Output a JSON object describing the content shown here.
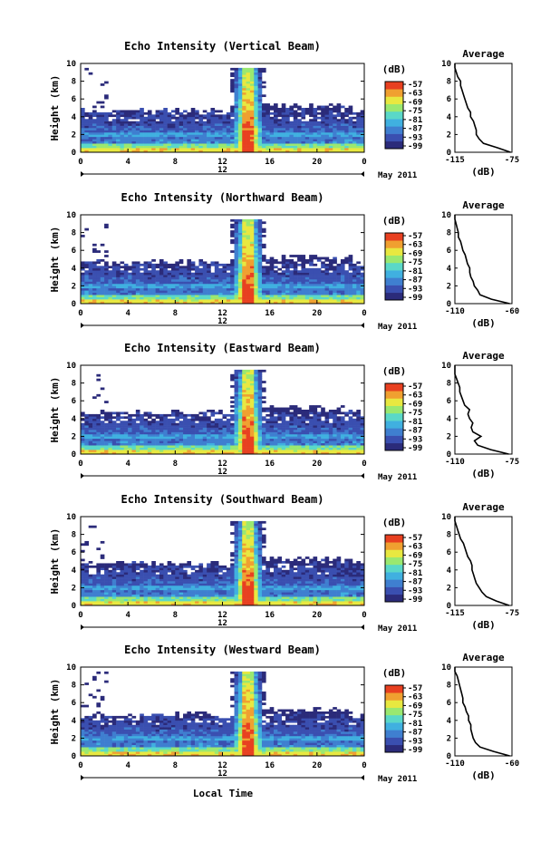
{
  "figure": {
    "colorbar_unit": "(dB)",
    "date_label": "May 2011",
    "xlabel": "Local Time",
    "colors": {
      "background": "#ffffff",
      "colormap": [
        "#2b2b7a",
        "#3a4fb0",
        "#3f7fd0",
        "#40b0e0",
        "#5ad8c8",
        "#9ae870",
        "#e8e840",
        "#f0a030",
        "#e84020"
      ]
    }
  },
  "chart_data": [
    {
      "type": "heatmap",
      "title": "Echo Intensity (Vertical Beam)",
      "ylabel": "Height (km)",
      "xlim": [
        0,
        24
      ],
      "ylim": [
        0,
        10
      ],
      "x_ticks": [
        "0",
        "4",
        "8",
        "12",
        "16",
        "20",
        "0"
      ],
      "y_ticks": [
        "0",
        "2",
        "4",
        "6",
        "8",
        "10"
      ],
      "noon_label": "12",
      "colorbar_ticks": [
        "-57",
        "-63",
        "-69",
        "-75",
        "-81",
        "-87",
        "-93",
        "-99"
      ],
      "profile": {
        "title": "Average",
        "xlabel": "(dB)",
        "xlim": [
          -115,
          -75
        ],
        "x_ticks": [
          "-115",
          "-75"
        ],
        "y": [
          0,
          0.5,
          1,
          1.5,
          2,
          2.5,
          3,
          3.5,
          4,
          4.5,
          5,
          5.5,
          6,
          6.5,
          7,
          7.5,
          8,
          8.5,
          9,
          9.5,
          10
        ],
        "x": [
          -76,
          -85,
          -95,
          -98,
          -100,
          -100,
          -101,
          -102,
          -104,
          -104,
          -106,
          -107,
          -108,
          -109,
          -110,
          -111,
          -111,
          -113,
          -114,
          -115,
          -115
        ]
      }
    },
    {
      "type": "heatmap",
      "title": "Echo Intensity (Northward Beam)",
      "ylabel": "Height (km)",
      "xlim": [
        0,
        24
      ],
      "ylim": [
        0,
        10
      ],
      "x_ticks": [
        "0",
        "4",
        "8",
        "12",
        "16",
        "20",
        "0"
      ],
      "y_ticks": [
        "0",
        "2",
        "4",
        "6",
        "8",
        "10"
      ],
      "noon_label": "12",
      "colorbar_ticks": [
        "-57",
        "-63",
        "-69",
        "-75",
        "-81",
        "-87",
        "-93",
        "-99"
      ],
      "profile": {
        "title": "Average",
        "xlabel": "(dB)",
        "xlim": [
          -110,
          -60
        ],
        "x_ticks": [
          "-110",
          "-60"
        ],
        "y": [
          0,
          0.5,
          1,
          1.5,
          2,
          2.5,
          3,
          3.5,
          4,
          4.5,
          5,
          5.5,
          6,
          6.5,
          7,
          7.5,
          8,
          8.5,
          9,
          9.5,
          10
        ],
        "x": [
          -62,
          -78,
          -88,
          -90,
          -93,
          -94,
          -96,
          -97,
          -97,
          -99,
          -100,
          -101,
          -103,
          -104,
          -105,
          -107,
          -107,
          -108,
          -109,
          -110,
          -110
        ]
      }
    },
    {
      "type": "heatmap",
      "title": "Echo Intensity (Eastward Beam)",
      "ylabel": "Height (km)",
      "xlim": [
        0,
        24
      ],
      "ylim": [
        0,
        10
      ],
      "x_ticks": [
        "0",
        "4",
        "8",
        "12",
        "16",
        "20",
        "0"
      ],
      "y_ticks": [
        "0",
        "2",
        "4",
        "6",
        "8",
        "10"
      ],
      "noon_label": "12",
      "colorbar_ticks": [
        "-57",
        "-63",
        "-69",
        "-75",
        "-81",
        "-87",
        "-93",
        "-99"
      ],
      "profile": {
        "title": "Average",
        "xlabel": "(dB)",
        "xlim": [
          -110,
          -75
        ],
        "x_ticks": [
          "-110",
          "-75"
        ],
        "y": [
          0,
          0.5,
          1,
          1.5,
          2,
          2.5,
          3,
          3.5,
          4,
          4.5,
          5,
          5.5,
          6,
          6.5,
          7,
          7.5,
          8,
          8.5,
          9,
          9.5,
          10
        ],
        "x": [
          -77,
          -88,
          -96,
          -98,
          -94,
          -99,
          -100,
          -99,
          -101,
          -102,
          -101,
          -104,
          -105,
          -106,
          -107,
          -107,
          -108,
          -109,
          -110,
          -110,
          -110
        ]
      }
    },
    {
      "type": "heatmap",
      "title": "Echo Intensity (Southward Beam)",
      "ylabel": "Height (km)",
      "xlim": [
        0,
        24
      ],
      "ylim": [
        0,
        10
      ],
      "x_ticks": [
        "0",
        "4",
        "8",
        "12",
        "16",
        "20",
        "0"
      ],
      "y_ticks": [
        "0",
        "2",
        "4",
        "6",
        "8",
        "10"
      ],
      "noon_label": "12",
      "colorbar_ticks": [
        "-57",
        "-63",
        "-69",
        "-75",
        "-81",
        "-87",
        "-93",
        "-99"
      ],
      "profile": {
        "title": "Average",
        "xlabel": "(dB)",
        "xlim": [
          -115,
          -75
        ],
        "x_ticks": [
          "-115",
          "-75"
        ],
        "y": [
          0,
          0.5,
          1,
          1.5,
          2,
          2.5,
          3,
          3.5,
          4,
          4.5,
          5,
          5.5,
          6,
          6.5,
          7,
          7.5,
          8,
          8.5,
          9,
          9.5,
          10
        ],
        "x": [
          -77,
          -86,
          -93,
          -96,
          -98,
          -100,
          -101,
          -102,
          -103,
          -103,
          -104,
          -106,
          -107,
          -108,
          -109,
          -111,
          -112,
          -113,
          -114,
          -115,
          -115
        ]
      }
    },
    {
      "type": "heatmap",
      "title": "Echo Intensity (Westward Beam)",
      "ylabel": "Height (km)",
      "xlim": [
        0,
        24
      ],
      "ylim": [
        0,
        10
      ],
      "x_ticks": [
        "0",
        "4",
        "8",
        "12",
        "16",
        "20",
        "0"
      ],
      "y_ticks": [
        "0",
        "2",
        "4",
        "6",
        "8",
        "10"
      ],
      "noon_label": "12",
      "colorbar_ticks": [
        "-57",
        "-63",
        "-69",
        "-75",
        "-81",
        "-87",
        "-93",
        "-99"
      ],
      "profile": {
        "title": "Average",
        "xlabel": "(dB)",
        "xlim": [
          -110,
          -60
        ],
        "x_ticks": [
          "-110",
          "-60"
        ],
        "y": [
          0,
          0.5,
          1,
          1.5,
          2,
          2.5,
          3,
          3.5,
          4,
          4.5,
          5,
          5.5,
          6,
          6.5,
          7,
          7.5,
          8,
          8.5,
          9,
          9.5,
          10
        ],
        "x": [
          -62,
          -76,
          -88,
          -92,
          -94,
          -95,
          -96,
          -96,
          -98,
          -98,
          -100,
          -101,
          -103,
          -103,
          -104,
          -105,
          -106,
          -107,
          -108,
          -110,
          -110
        ]
      }
    }
  ]
}
